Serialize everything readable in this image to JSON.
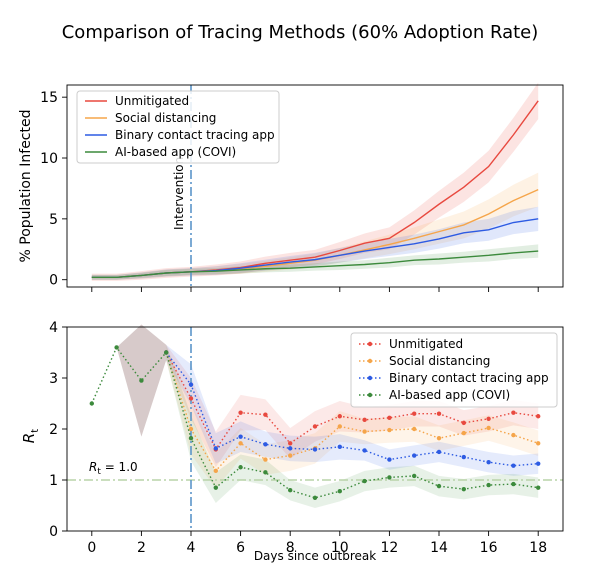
{
  "chart_data": {
    "title": "Comparison of Tracing Methods (60% Adoption Rate)",
    "xlabel": "Days since outbreak",
    "intervention_day": 4,
    "intervention_label": "Intervention",
    "panels": [
      {
        "id": "infected",
        "type": "line",
        "ylabel": "% Population Infected",
        "xlim": [
          -1,
          19
        ],
        "ylim": [
          -0.6,
          16
        ],
        "yticks": [
          0,
          5,
          10,
          15
        ],
        "xticks": [
          0,
          2,
          4,
          6,
          8,
          10,
          12,
          14,
          16,
          18
        ],
        "show_x_tick_labels": false,
        "legend_position": "upper-left",
        "x": [
          0,
          1,
          2,
          3,
          4,
          5,
          6,
          7,
          8,
          9,
          10,
          11,
          12,
          13,
          14,
          15,
          16,
          17,
          18
        ],
        "series": [
          {
            "name": "Unmitigated",
            "color": "#e8493f",
            "values": [
              0.2,
              0.2,
              0.35,
              0.55,
              0.65,
              0.8,
              1.0,
              1.35,
              1.6,
              1.85,
              2.4,
              3.0,
              3.4,
              4.7,
              6.2,
              7.6,
              9.3,
              11.9,
              14.7
            ],
            "band": [
              0.3,
              0.3,
              0.35,
              0.4,
              0.4,
              0.45,
              0.5,
              0.55,
              0.6,
              0.6,
              0.7,
              0.8,
              0.9,
              1.0,
              1.1,
              1.2,
              1.3,
              1.4,
              1.5
            ]
          },
          {
            "name": "Social distancing",
            "color": "#f5a54a",
            "values": [
              0.2,
              0.2,
              0.35,
              0.55,
              0.65,
              0.75,
              0.9,
              1.1,
              1.35,
              1.6,
              2.0,
              2.45,
              2.9,
              3.4,
              3.95,
              4.5,
              5.4,
              6.5,
              7.4
            ],
            "band": [
              0.2,
              0.2,
              0.25,
              0.3,
              0.3,
              0.35,
              0.4,
              0.45,
              0.5,
              0.55,
              0.6,
              0.7,
              0.8,
              0.9,
              1.0,
              1.1,
              1.2,
              1.3,
              1.4
            ]
          },
          {
            "name": "Binary contact tracing app",
            "color": "#2d5be3",
            "values": [
              0.2,
              0.2,
              0.35,
              0.55,
              0.65,
              0.75,
              0.95,
              1.2,
              1.45,
              1.65,
              2.0,
              2.35,
              2.65,
              2.95,
              3.35,
              3.85,
              4.1,
              4.7,
              5.0
            ],
            "band": [
              0.2,
              0.2,
              0.25,
              0.3,
              0.3,
              0.35,
              0.4,
              0.45,
              0.5,
              0.55,
              0.6,
              0.65,
              0.7,
              0.75,
              0.8,
              0.85,
              0.9,
              0.95,
              1.0
            ]
          },
          {
            "name": "AI-based app (COVI)",
            "color": "#3c8a3c",
            "values": [
              0.2,
              0.2,
              0.35,
              0.55,
              0.65,
              0.7,
              0.8,
              0.9,
              0.95,
              1.05,
              1.15,
              1.25,
              1.4,
              1.6,
              1.7,
              1.85,
              2.0,
              2.2,
              2.35
            ],
            "band": [
              0.2,
              0.2,
              0.2,
              0.25,
              0.25,
              0.25,
              0.3,
              0.3,
              0.3,
              0.3,
              0.35,
              0.35,
              0.4,
              0.4,
              0.45,
              0.45,
              0.5,
              0.5,
              0.55
            ]
          }
        ]
      },
      {
        "id": "rt",
        "type": "line",
        "ylabel_main": "R",
        "ylabel_sub": "t",
        "xlim": [
          -1,
          19
        ],
        "ylim": [
          0,
          4
        ],
        "yticks": [
          0,
          1,
          2,
          3,
          4
        ],
        "xticks": [
          0,
          2,
          4,
          6,
          8,
          10,
          12,
          14,
          16,
          18
        ],
        "show_x_tick_labels": true,
        "legend_position": "upper-right",
        "reference_line": {
          "value": 1.0,
          "label_main": "R",
          "label_sub": "t",
          "label_suffix": " = 1.0",
          "color": "#b8d3a8"
        },
        "shared_prefix": {
          "color": "#3c8a3c",
          "x": [
            0,
            1,
            2,
            3
          ],
          "values": [
            2.5,
            3.6,
            2.95,
            3.5
          ],
          "band": [
            0.0,
            0.0,
            1.1,
            0.15
          ],
          "band_color": "#7a5050"
        },
        "x": [
          3,
          4,
          5,
          6,
          7,
          8,
          9,
          10,
          11,
          12,
          13,
          14,
          15,
          16,
          17,
          18
        ],
        "series": [
          {
            "name": "Unmitigated",
            "color": "#e8493f",
            "values": [
              3.5,
              2.6,
              1.6,
              2.32,
              2.28,
              1.72,
              2.05,
              2.25,
              2.18,
              2.22,
              2.3,
              2.3,
              2.12,
              2.2,
              2.32,
              2.25
            ],
            "band": [
              0.15,
              0.4,
              0.35,
              0.35,
              0.3,
              0.3,
              0.3,
              0.3,
              0.25,
              0.25,
              0.25,
              0.25,
              0.25,
              0.25,
              0.25,
              0.25
            ]
          },
          {
            "name": "Social distancing",
            "color": "#f5a54a",
            "values": [
              3.5,
              2.0,
              1.18,
              1.72,
              1.4,
              1.48,
              1.62,
              2.05,
              1.95,
              1.98,
              2.0,
              1.82,
              1.92,
              2.02,
              1.88,
              1.72
            ],
            "band": [
              0.15,
              0.5,
              0.35,
              0.3,
              0.3,
              0.3,
              0.3,
              0.3,
              0.25,
              0.25,
              0.25,
              0.25,
              0.25,
              0.25,
              0.25,
              0.25
            ]
          },
          {
            "name": "Binary contact tracing app",
            "color": "#2d5be3",
            "values": [
              3.5,
              2.87,
              1.62,
              1.85,
              1.7,
              1.62,
              1.6,
              1.65,
              1.58,
              1.4,
              1.48,
              1.55,
              1.45,
              1.35,
              1.28,
              1.32
            ],
            "band": [
              0.15,
              0.4,
              0.3,
              0.3,
              0.25,
              0.25,
              0.25,
              0.25,
              0.2,
              0.2,
              0.2,
              0.2,
              0.2,
              0.2,
              0.2,
              0.2
            ]
          },
          {
            "name": "AI-based app (COVI)",
            "color": "#3c8a3c",
            "values": [
              3.5,
              1.82,
              0.85,
              1.25,
              1.15,
              0.8,
              0.65,
              0.78,
              0.98,
              1.05,
              1.08,
              0.88,
              0.82,
              0.9,
              0.92,
              0.85
            ],
            "band": [
              0.15,
              0.45,
              0.3,
              0.25,
              0.25,
              0.2,
              0.2,
              0.2,
              0.2,
              0.2,
              0.2,
              0.2,
              0.2,
              0.2,
              0.2,
              0.2
            ]
          }
        ]
      }
    ]
  }
}
